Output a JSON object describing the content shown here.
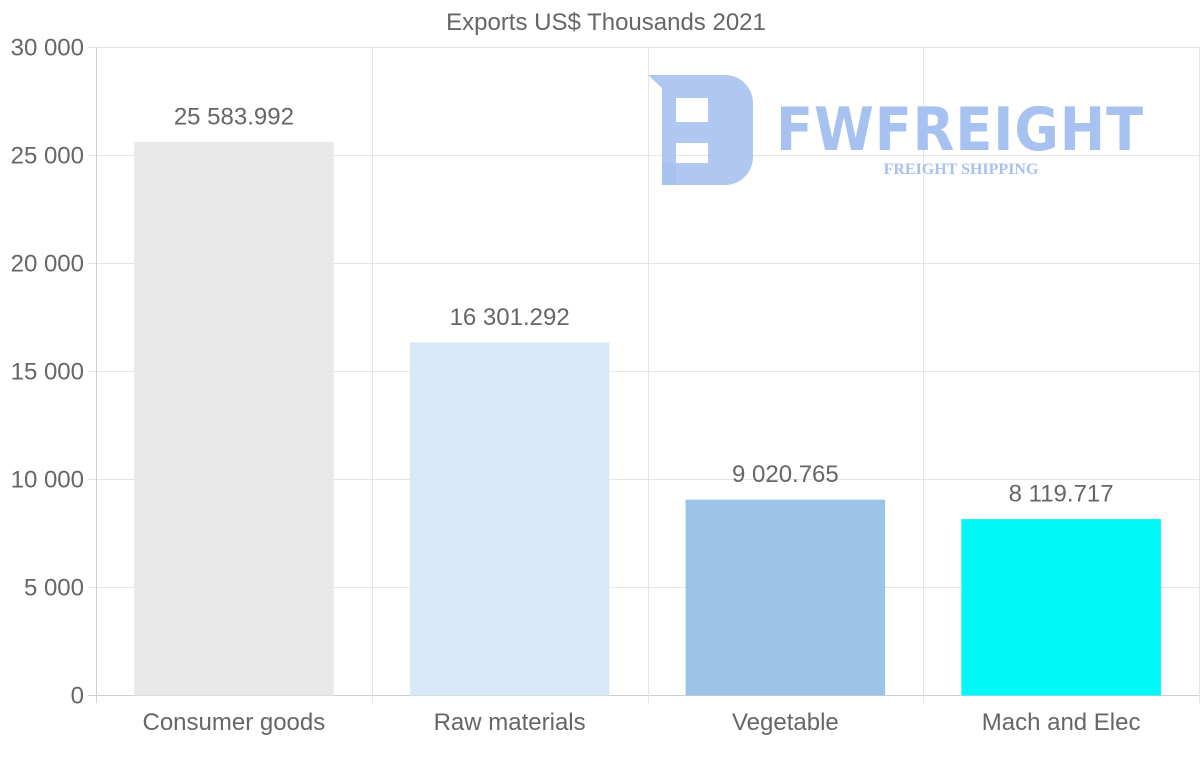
{
  "chart_data": {
    "type": "bar",
    "title": "Exports US$ Thousands 2021",
    "categories": [
      "Consumer goods",
      "Raw materials",
      "Vegetable",
      "Mach and Elec"
    ],
    "values": [
      25583.992,
      16301.292,
      9020.765,
      8119.717
    ],
    "value_labels": [
      "25 583.992",
      "16 301.292",
      "9 020.765",
      "8 119.717"
    ],
    "bar_colors": [
      "#e8e8e8",
      "#d8e8f9",
      "#9bc3e6",
      "#00f8f8"
    ],
    "xlabel": "",
    "ylabel": "",
    "ylim": [
      0,
      30000
    ],
    "yticks": [
      0,
      5000,
      10000,
      15000,
      20000,
      25000,
      30000
    ],
    "ytick_labels": [
      "0",
      "5 000",
      "10 000",
      "15 000",
      "20 000",
      "25 000",
      "30 000"
    ],
    "grid": true,
    "legend": "none"
  },
  "watermark": {
    "brand": "FWFREIGHT",
    "tagline": "FREIGHT SHIPPING",
    "color": "#a7c1f0"
  }
}
